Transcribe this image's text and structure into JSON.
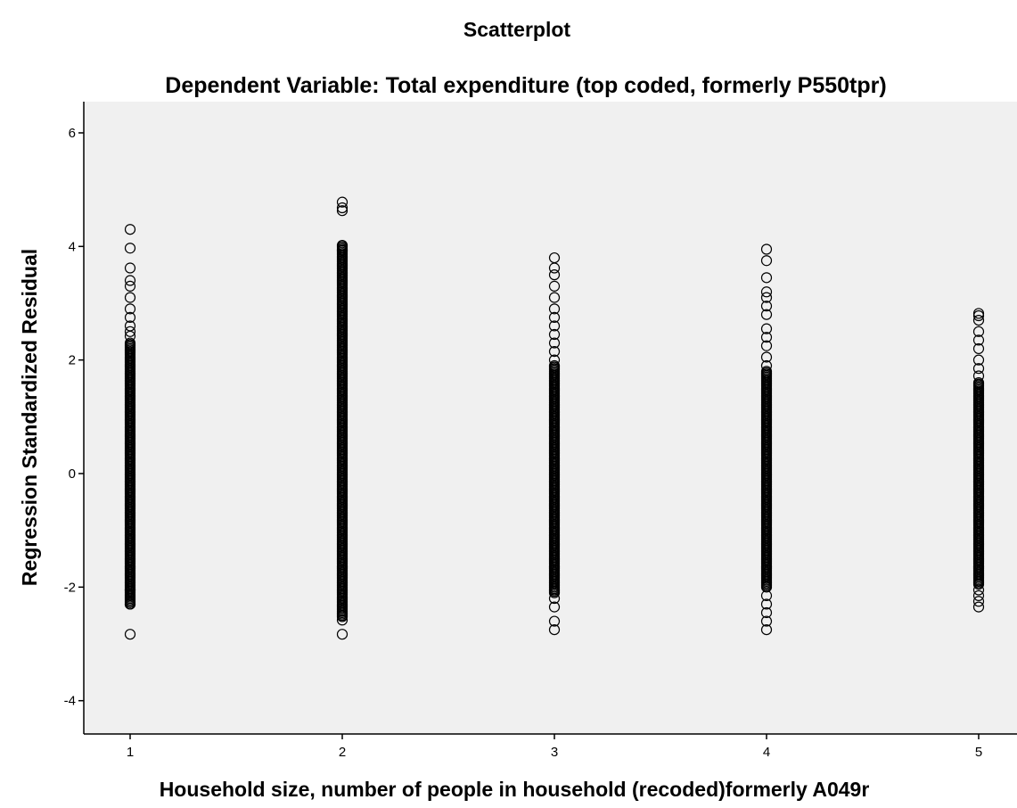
{
  "chart_data": {
    "type": "scatter",
    "title": "Scatterplot",
    "subtitle": "Dependent Variable: Total expenditure (top coded, formerly P550tpr)",
    "xlabel": "Household size, number of people in household (recoded)formerly A049r",
    "ylabel": "Regression Standardized Residual",
    "xlim": [
      0.8,
      5.2
    ],
    "ylim": [
      -4.5,
      6.6
    ],
    "x_ticks": [
      1,
      2,
      3,
      4,
      5
    ],
    "x_tick_labels": [
      "1",
      "2",
      "3",
      "4",
      "5"
    ],
    "y_ticks": [
      -4,
      -2,
      0,
      2,
      4,
      6
    ],
    "y_tick_labels": [
      "-4",
      "-2",
      "0",
      "2",
      "4",
      "6"
    ],
    "grid": false,
    "legend": "none",
    "plot_background": "#f0f0f0",
    "marker": "open-circle",
    "marker_color": "#000000",
    "series": [
      {
        "x": 1,
        "range": [
          -2.3,
          2.3
        ],
        "outliers": [
          4.3,
          3.97,
          3.62,
          3.4,
          3.3,
          3.1,
          2.9,
          2.75,
          2.6,
          2.5,
          2.42,
          -2.05,
          -2.15,
          -2.3,
          -2.83
        ]
      },
      {
        "x": 2,
        "range": [
          -2.5,
          4.0
        ],
        "outliers": [
          4.78,
          4.68,
          4.63,
          4.02,
          3.93,
          -2.52,
          -2.58,
          -2.83
        ]
      },
      {
        "x": 3,
        "range": [
          -2.1,
          1.9
        ],
        "outliers": [
          3.8,
          3.62,
          3.5,
          3.3,
          3.1,
          2.9,
          2.75,
          2.6,
          2.45,
          2.3,
          2.15,
          2.0,
          -2.2,
          -2.35,
          -2.6,
          -2.75
        ]
      },
      {
        "x": 4,
        "range": [
          -2.0,
          1.8
        ],
        "outliers": [
          3.95,
          3.75,
          3.45,
          3.2,
          3.1,
          2.95,
          2.8,
          2.55,
          2.4,
          2.25,
          2.05,
          1.9,
          -2.15,
          -2.3,
          -2.45,
          -2.6,
          -2.75
        ]
      },
      {
        "x": 5,
        "range": [
          -1.95,
          1.6
        ],
        "outliers": [
          2.82,
          2.78,
          2.7,
          2.5,
          2.35,
          2.2,
          2.0,
          1.85,
          1.72,
          -2.05,
          -2.15,
          -2.25,
          -2.35
        ]
      }
    ]
  }
}
